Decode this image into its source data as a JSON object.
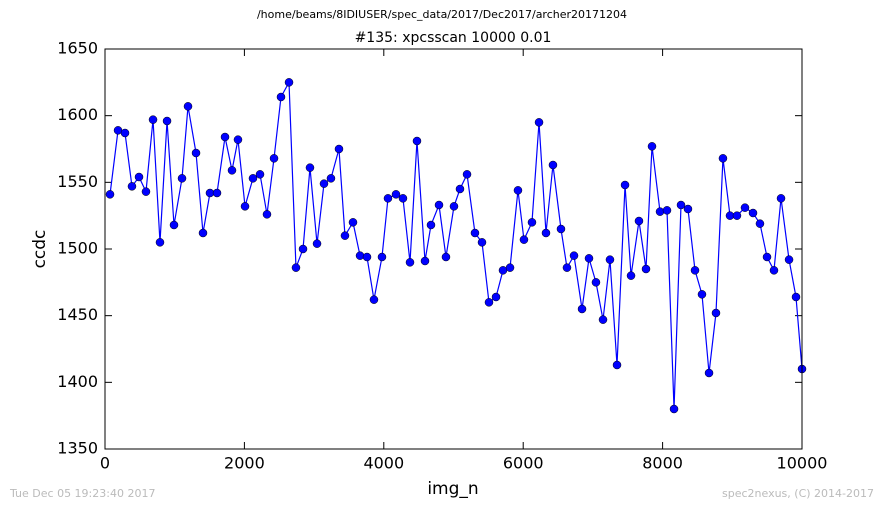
{
  "chart_data": {
    "type": "line",
    "suptitle": "/home/beams/8IDIUSER/spec_data/2017/Dec2017/archer20171204",
    "title": "#135: xpcsscan 10000 0.01",
    "xlabel": "img_n",
    "ylabel": "ccdc",
    "x": [
      72,
      187,
      287,
      387,
      488,
      588,
      689,
      789,
      890,
      990,
      1105,
      1191,
      1306,
      1406,
      1506,
      1607,
      1722,
      1822,
      1908,
      2009,
      2123,
      2224,
      2324,
      2425,
      2525,
      2640,
      2740,
      2841,
      2941,
      3042,
      3142,
      3242,
      3357,
      3443,
      3558,
      3659,
      3759,
      3859,
      3974,
      4060,
      4175,
      4275,
      4376,
      4476,
      4591,
      4677,
      4792,
      4892,
      5007,
      5093,
      5194,
      5308,
      5409,
      5509,
      5610,
      5710,
      5811,
      5925,
      6011,
      6126,
      6227,
      6327,
      6427,
      6542,
      6628,
      6729,
      6844,
      6944,
      7044,
      7145,
      7245,
      7346,
      7461,
      7547,
      7661,
      7762,
      7848,
      7963,
      8063,
      8164,
      8264,
      8364,
      8465,
      8565,
      8666,
      8766,
      8866,
      8967,
      9067,
      9182,
      9297,
      9397,
      9498,
      9598,
      9699,
      9814,
      9914,
      10000
    ],
    "series": [
      {
        "name": "ccdc",
        "color": "#0000ff",
        "values": [
          1541,
          1589,
          1587,
          1547,
          1554,
          1543,
          1597,
          1505,
          1596,
          1518,
          1553,
          1607,
          1572,
          1512,
          1542,
          1542,
          1584,
          1559,
          1582,
          1532,
          1553,
          1556,
          1526,
          1568,
          1614,
          1625,
          1486,
          1500,
          1561,
          1504,
          1549,
          1553,
          1575,
          1510,
          1520,
          1495,
          1494,
          1462,
          1494,
          1538,
          1541,
          1538,
          1490,
          1581,
          1491,
          1518,
          1533,
          1494,
          1532,
          1545,
          1556,
          1512,
          1505,
          1460,
          1464,
          1484,
          1486,
          1544,
          1507,
          1520,
          1595,
          1512,
          1563,
          1515,
          1486,
          1495,
          1455,
          1493,
          1475,
          1447,
          1492,
          1413,
          1548,
          1480,
          1521,
          1485,
          1577,
          1528,
          1529,
          1380,
          1533,
          1530,
          1484,
          1466,
          1407,
          1452,
          1568,
          1525,
          1525,
          1531,
          1527,
          1519,
          1494,
          1484,
          1538,
          1492,
          1464,
          1410
        ]
      }
    ],
    "xlim": [
      0,
      10000
    ],
    "ylim": [
      1350,
      1650
    ],
    "xticks": [
      0,
      2000,
      4000,
      6000,
      8000,
      10000
    ],
    "yticks": [
      1350,
      1400,
      1450,
      1500,
      1550,
      1600,
      1650
    ],
    "grid": false
  },
  "footer": {
    "left": "Tue Dec 05 19:23:40 2017",
    "right": "spec2nexus, (C) 2014-2017"
  }
}
